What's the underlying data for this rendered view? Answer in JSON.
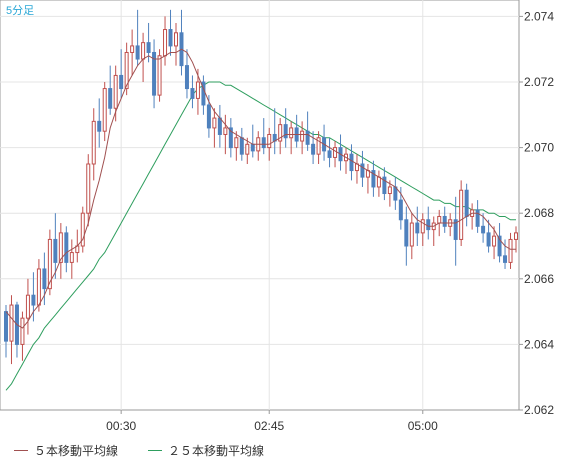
{
  "chart_data": {
    "type": "candlestick",
    "title": "5分足",
    "ylim": [
      2.062,
      2.0745
    ],
    "y_ticks": [
      "2.062",
      "2.064",
      "2.066",
      "2.068",
      "2.070",
      "2.072",
      "2.074"
    ],
    "x_ticks": [
      "00:30",
      "02:45",
      "05:00"
    ],
    "grid": true,
    "colors": {
      "up": "#c0504d",
      "down": "#4f81bd",
      "ma5": "#a05050",
      "ma25": "#2e9e5e",
      "axis_text": "#333333",
      "title_text": "#2aa7d6"
    },
    "candles": [
      [
        2.065,
        2.0652,
        2.0636,
        2.0641
      ],
      [
        2.0641,
        2.0655,
        2.0634,
        2.0652
      ],
      [
        2.0652,
        2.0653,
        2.0636,
        2.064
      ],
      [
        2.064,
        2.065,
        2.0635,
        2.0648
      ],
      [
        2.0648,
        2.066,
        2.0643,
        2.0655
      ],
      [
        2.0655,
        2.0662,
        2.0647,
        2.0652
      ],
      [
        2.0652,
        2.0666,
        2.065,
        2.0663
      ],
      [
        2.0663,
        2.0668,
        2.0652,
        2.0657
      ],
      [
        2.0657,
        2.0675,
        2.0655,
        2.0672
      ],
      [
        2.0672,
        2.068,
        2.066,
        2.0665
      ],
      [
        2.0665,
        2.0677,
        2.066,
        2.0674
      ],
      [
        2.0674,
        2.0676,
        2.0662,
        2.0665
      ],
      [
        2.0665,
        2.0672,
        2.066,
        2.0668
      ],
      [
        2.0668,
        2.0675,
        2.0665,
        2.067
      ],
      [
        2.067,
        2.0682,
        2.0668,
        2.068
      ],
      [
        2.068,
        2.0698,
        2.0676,
        2.0695
      ],
      [
        2.0695,
        2.0712,
        2.069,
        2.0708
      ],
      [
        2.0708,
        2.0715,
        2.07,
        2.0705
      ],
      [
        2.0705,
        2.072,
        2.0702,
        2.0718
      ],
      [
        2.0718,
        2.0725,
        2.071,
        2.0712
      ],
      [
        2.0712,
        2.0725,
        2.0708,
        2.0722
      ],
      [
        2.0722,
        2.073,
        2.0715,
        2.0718
      ],
      [
        2.0718,
        2.0732,
        2.0716,
        2.0729
      ],
      [
        2.0729,
        2.0736,
        2.0722,
        2.0731
      ],
      [
        2.0731,
        2.0742,
        2.0725,
        2.0727
      ],
      [
        2.0727,
        2.0735,
        2.072,
        2.0732
      ],
      [
        2.0732,
        2.0738,
        2.0726,
        2.0729
      ],
      [
        2.0729,
        2.0733,
        2.0712,
        2.0716
      ],
      [
        2.0716,
        2.073,
        2.0714,
        2.0728
      ],
      [
        2.0728,
        2.074,
        2.0725,
        2.0736
      ],
      [
        2.0736,
        2.0742,
        2.0728,
        2.0731
      ],
      [
        2.0731,
        2.0738,
        2.0725,
        2.0735
      ],
      [
        2.0735,
        2.0742,
        2.0722,
        2.0725
      ],
      [
        2.0725,
        2.073,
        2.0715,
        2.0718
      ],
      [
        2.0718,
        2.0722,
        2.0712,
        2.0715
      ],
      [
        2.0715,
        2.0724,
        2.071,
        2.072
      ],
      [
        2.072,
        2.0722,
        2.071,
        2.0713
      ],
      [
        2.0713,
        2.0716,
        2.0703,
        2.0706
      ],
      [
        2.0706,
        2.0712,
        2.07,
        2.0709
      ],
      [
        2.0709,
        2.0713,
        2.07,
        2.0704
      ],
      [
        2.0704,
        2.071,
        2.0698,
        2.0706
      ],
      [
        2.0706,
        2.0709,
        2.0697,
        2.07
      ],
      [
        2.07,
        2.0705,
        2.0696,
        2.0703
      ],
      [
        2.0703,
        2.0706,
        2.0696,
        2.0698
      ],
      [
        2.0698,
        2.0703,
        2.0695,
        2.0701
      ],
      [
        2.0701,
        2.0707,
        2.0697,
        2.0699
      ],
      [
        2.0699,
        2.0705,
        2.0696,
        2.0703
      ],
      [
        2.0703,
        2.0709,
        2.0698,
        2.07
      ],
      [
        2.07,
        2.0706,
        2.0696,
        2.0704
      ],
      [
        2.0704,
        2.0712,
        2.0698,
        2.0702
      ],
      [
        2.0702,
        2.0709,
        2.0698,
        2.0707
      ],
      [
        2.0707,
        2.0712,
        2.07,
        2.0703
      ],
      [
        2.0703,
        2.0708,
        2.0698,
        2.0706
      ],
      [
        2.0706,
        2.071,
        2.07,
        2.0702
      ],
      [
        2.0702,
        2.0708,
        2.0698,
        2.0705
      ],
      [
        2.0705,
        2.0711,
        2.0699,
        2.0701
      ],
      [
        2.0701,
        2.0705,
        2.0695,
        2.0698
      ],
      [
        2.0698,
        2.0705,
        2.0695,
        2.0703
      ],
      [
        2.0703,
        2.0707,
        2.0696,
        2.0699
      ],
      [
        2.0699,
        2.0703,
        2.0694,
        2.0697
      ],
      [
        2.0697,
        2.0702,
        2.0694,
        2.07
      ],
      [
        2.07,
        2.0704,
        2.0693,
        2.0696
      ],
      [
        2.0696,
        2.07,
        2.0692,
        2.0698
      ],
      [
        2.0698,
        2.0701,
        2.069,
        2.0693
      ],
      [
        2.0693,
        2.0698,
        2.0689,
        2.0695
      ],
      [
        2.0695,
        2.0699,
        2.0688,
        2.0691
      ],
      [
        2.0691,
        2.0695,
        2.0686,
        2.0693
      ],
      [
        2.0693,
        2.0696,
        2.0685,
        2.0688
      ],
      [
        2.0688,
        2.0693,
        2.0685,
        2.0691
      ],
      [
        2.0691,
        2.0694,
        2.0684,
        2.0686
      ],
      [
        2.0686,
        2.069,
        2.0682,
        2.0688
      ],
      [
        2.0688,
        2.0691,
        2.0681,
        2.0684
      ],
      [
        2.0684,
        2.0688,
        2.0675,
        2.0678
      ],
      [
        2.0678,
        2.0682,
        2.0664,
        2.067
      ],
      [
        2.067,
        2.068,
        2.0666,
        2.0677
      ],
      [
        2.0677,
        2.0682,
        2.067,
        2.0674
      ],
      [
        2.0674,
        2.068,
        2.067,
        2.0678
      ],
      [
        2.0678,
        2.0682,
        2.0672,
        2.0675
      ],
      [
        2.0675,
        2.0679,
        2.067,
        2.0677
      ],
      [
        2.0677,
        2.0681,
        2.0673,
        2.0679
      ],
      [
        2.0679,
        2.0682,
        2.0674,
        2.0676
      ],
      [
        2.0676,
        2.068,
        2.0673,
        2.0678
      ],
      [
        2.0678,
        2.0685,
        2.0664,
        2.0672
      ],
      [
        2.0672,
        2.069,
        2.067,
        2.0687
      ],
      [
        2.0687,
        2.0689,
        2.0676,
        2.0679
      ],
      [
        2.0679,
        2.0683,
        2.0675,
        2.0681
      ],
      [
        2.0681,
        2.0684,
        2.0674,
        2.0676
      ],
      [
        2.0676,
        2.068,
        2.0671,
        2.0674
      ],
      [
        2.0674,
        2.0678,
        2.0668,
        2.067
      ],
      [
        2.067,
        2.0676,
        2.0666,
        2.0673
      ],
      [
        2.0673,
        2.0677,
        2.0665,
        2.0667
      ],
      [
        2.0667,
        2.0672,
        2.0663,
        2.0665
      ],
      [
        2.0665,
        2.0674,
        2.0663,
        2.0672
      ],
      [
        2.0672,
        2.0676,
        2.0668,
        2.0674
      ]
    ],
    "ma5": [
      2.065,
      2.0648,
      2.0646,
      2.0645,
      2.0647,
      2.065,
      2.0652,
      2.0655,
      2.0659,
      2.0662,
      2.0666,
      2.0668,
      2.0669,
      2.067,
      2.0672,
      2.0677,
      2.0684,
      2.069,
      2.0697,
      2.0706,
      2.0711,
      2.0715,
      2.0719,
      2.0722,
      2.0725,
      2.0727,
      2.0728,
      2.0727,
      2.0727,
      2.0728,
      2.0729,
      2.0729,
      2.073,
      2.0729,
      2.0726,
      2.0722,
      2.0718,
      2.0714,
      2.0711,
      2.0709,
      2.0707,
      2.0705,
      2.0704,
      2.0703,
      2.0702,
      2.0701,
      2.0701,
      2.0701,
      2.0701,
      2.0702,
      2.0703,
      2.0704,
      2.0704,
      2.0704,
      2.0704,
      2.0704,
      2.0703,
      2.0702,
      2.0701,
      2.07,
      2.0699,
      2.0698,
      2.0697,
      2.0696,
      2.0695,
      2.0694,
      2.0693,
      2.0692,
      2.0691,
      2.069,
      2.0689,
      2.0688,
      2.0686,
      2.0683,
      2.068,
      2.0678,
      2.0677,
      2.0676,
      2.0676,
      2.0677,
      2.0677,
      2.0677,
      2.0677,
      2.0678,
      2.0679,
      2.068,
      2.068,
      2.0679,
      2.0677,
      2.0675,
      2.0672,
      2.067,
      2.0669,
      2.0669
    ],
    "ma25": [
      2.0626,
      2.0628,
      2.0631,
      2.0634,
      2.0637,
      2.064,
      2.0642,
      2.0645,
      2.0647,
      2.0649,
      2.0651,
      2.0653,
      2.0655,
      2.0657,
      2.0659,
      2.0661,
      2.0663,
      2.0666,
      2.0668,
      2.0671,
      2.0674,
      2.0677,
      2.068,
      2.0683,
      2.0686,
      2.0689,
      2.0692,
      2.0695,
      2.0698,
      2.0701,
      2.0704,
      2.0707,
      2.071,
      2.0713,
      2.0716,
      2.0718,
      2.0719,
      2.072,
      2.072,
      2.072,
      2.0719,
      2.0719,
      2.0718,
      2.0717,
      2.0716,
      2.0715,
      2.0714,
      2.0713,
      2.0712,
      2.0711,
      2.071,
      2.0709,
      2.0708,
      2.0707,
      2.0706,
      2.0705,
      2.0704,
      2.0704,
      2.0703,
      2.0703,
      2.0702,
      2.0701,
      2.07,
      2.0699,
      2.0698,
      2.0697,
      2.0696,
      2.0695,
      2.0694,
      2.0693,
      2.0692,
      2.0691,
      2.069,
      2.0689,
      2.0688,
      2.0687,
      2.0686,
      2.0685,
      2.0684,
      2.0684,
      2.0683,
      2.0683,
      2.0682,
      2.0682,
      2.0682,
      2.0681,
      2.0681,
      2.0681,
      2.068,
      2.068,
      2.0679,
      2.0679,
      2.0678,
      2.0678
    ]
  },
  "legend": [
    {
      "label": "５本移動平均線"
    },
    {
      "label": "２５本移動平均線"
    }
  ]
}
